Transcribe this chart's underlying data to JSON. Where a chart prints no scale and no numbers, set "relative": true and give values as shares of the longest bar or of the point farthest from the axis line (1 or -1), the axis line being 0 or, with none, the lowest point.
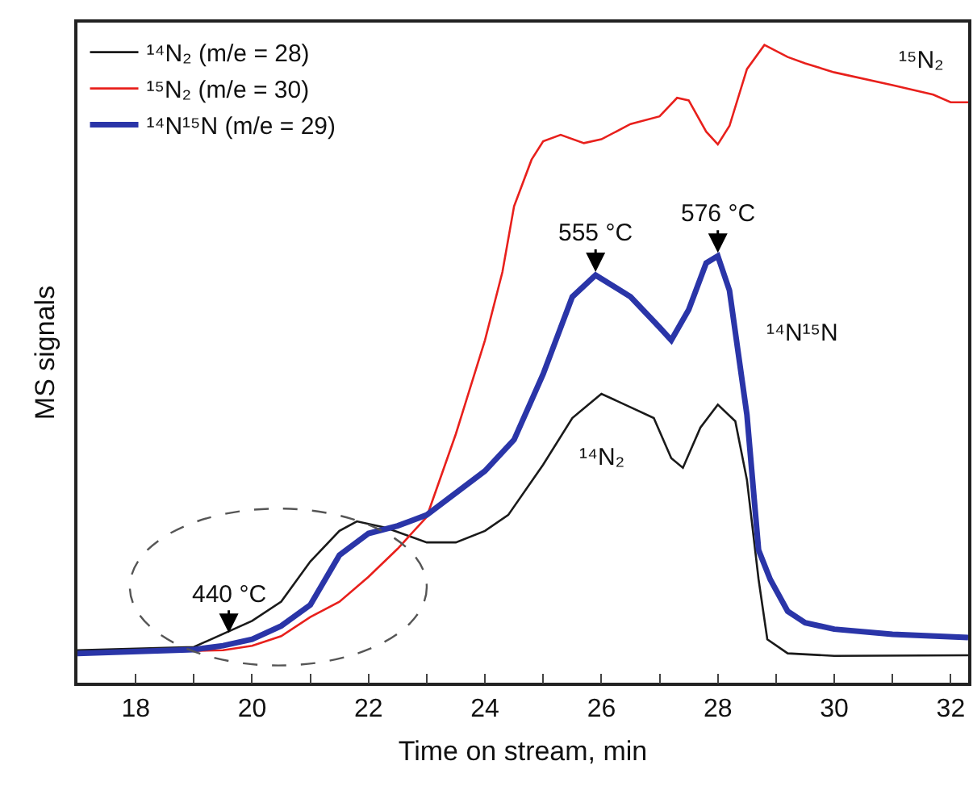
{
  "chart_data": {
    "type": "line",
    "relative": true,
    "xlabel": "Time on stream, min",
    "ylabel": "MS signals",
    "xlim": [
      17,
      32.3
    ],
    "xticks": [
      18,
      {
        "value": 19,
        "label": null
      },
      20,
      {
        "value": 21,
        "label": null
      },
      22,
      {
        "value": 23,
        "label": null
      },
      24,
      {
        "value": 25,
        "label": null
      },
      26,
      {
        "value": 27,
        "label": null
      },
      28,
      {
        "value": 29,
        "label": null
      },
      30,
      {
        "value": 31,
        "label": null
      },
      32
    ],
    "tick_labels": "x",
    "grid": false,
    "legend": "top left",
    "marker": "none",
    "line_style": "solid",
    "series": [
      {
        "name": "¹⁴N₂ (m/e = 28)",
        "color": "#1a1a1a",
        "x": [
          17,
          19,
          20,
          20.5,
          21,
          21.5,
          21.8,
          22.3,
          23,
          23.5,
          24,
          24.4,
          25,
          25.5,
          26,
          26.5,
          26.9,
          27.2,
          27.4,
          27.7,
          28,
          28.3,
          28.5,
          28.7,
          28.85,
          29.2,
          30,
          32.3
        ],
        "values": [
          0.051,
          0.056,
          0.097,
          0.127,
          0.19,
          0.238,
          0.253,
          0.243,
          0.22,
          0.22,
          0.238,
          0.263,
          0.342,
          0.415,
          0.453,
          0.432,
          0.415,
          0.352,
          0.337,
          0.4,
          0.436,
          0.41,
          0.318,
          0.162,
          0.068,
          0.046,
          0.042,
          0.043
        ]
      },
      {
        "name": "¹⁵N₂ (m/e = 30)",
        "color": "#e8201c",
        "x": [
          17,
          19.5,
          20,
          20.5,
          21,
          21.5,
          22,
          22.5,
          23,
          23.5,
          24,
          24.3,
          24.5,
          24.8,
          25,
          25.3,
          25.7,
          26,
          26.5,
          27,
          27.3,
          27.5,
          27.8,
          28,
          28.2,
          28.5,
          28.8,
          29.2,
          29.5,
          30,
          31,
          31.7,
          32,
          32.3
        ],
        "values": [
          0.046,
          0.051,
          0.058,
          0.073,
          0.103,
          0.127,
          0.166,
          0.21,
          0.26,
          0.39,
          0.537,
          0.644,
          0.747,
          0.82,
          0.849,
          0.859,
          0.846,
          0.852,
          0.876,
          0.888,
          0.917,
          0.913,
          0.864,
          0.844,
          0.873,
          0.962,
          1,
          0.981,
          0.971,
          0.957,
          0.937,
          0.922,
          0.91,
          0.91
        ]
      },
      {
        "name": "¹⁴N¹⁵N (m/e = 29)",
        "color": "#2a35a8",
        "x": [
          17,
          19,
          19.5,
          20,
          20.5,
          21,
          21.5,
          22,
          22.5,
          23,
          24,
          24.5,
          25,
          25.5,
          25.9,
          26.5,
          27,
          27.2,
          27.5,
          27.8,
          28,
          28.2,
          28.5,
          28.7,
          28.9,
          29.2,
          29.5,
          30,
          31,
          32.3
        ],
        "values": [
          0.046,
          0.052,
          0.058,
          0.068,
          0.089,
          0.122,
          0.2,
          0.234,
          0.246,
          0.263,
          0.332,
          0.381,
          0.484,
          0.605,
          0.639,
          0.605,
          0.557,
          0.537,
          0.585,
          0.658,
          0.669,
          0.615,
          0.42,
          0.208,
          0.162,
          0.112,
          0.094,
          0.084,
          0.076,
          0.071
        ]
      }
    ],
    "annotations": [
      {
        "text": "440 °C",
        "x": 19.6,
        "y": 0.073
      },
      {
        "text": "555 °C",
        "x": 25.9,
        "y": 0.639
      },
      {
        "text": "576 °C",
        "x": 28,
        "y": 0.669
      },
      "¹⁴N₂",
      "¹⁴N¹⁵N",
      "¹⁵N₂"
    ]
  }
}
